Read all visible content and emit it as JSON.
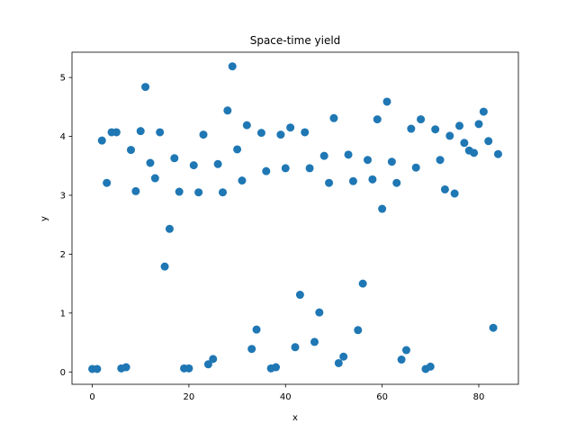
{
  "chart_data": {
    "type": "scatter",
    "title": "Space-time yield",
    "xlabel": "x",
    "ylabel": "y",
    "xlim": [
      -4.2,
      88.2
    ],
    "ylim": [
      -0.21,
      5.43
    ],
    "xticks": [
      0,
      20,
      40,
      60,
      80
    ],
    "yticks": [
      0,
      1,
      2,
      3,
      4,
      5
    ],
    "grid": false,
    "legend": "none",
    "marker_color": "#1f77b4",
    "x": [
      0,
      1,
      2,
      3,
      4,
      5,
      6,
      7,
      8,
      9,
      10,
      11,
      12,
      13,
      14,
      15,
      16,
      17,
      18,
      19,
      20,
      21,
      22,
      23,
      24,
      25,
      26,
      27,
      28,
      29,
      30,
      31,
      32,
      33,
      34,
      35,
      36,
      37,
      38,
      39,
      40,
      41,
      42,
      43,
      44,
      45,
      46,
      47,
      48,
      49,
      50,
      51,
      52,
      53,
      54,
      55,
      56,
      57,
      58,
      59,
      60,
      61,
      62,
      63,
      64,
      65,
      66,
      67,
      68,
      69,
      70,
      71,
      72,
      73,
      74,
      75,
      76,
      77,
      78,
      79,
      80,
      81,
      82,
      83,
      84
    ],
    "y": [
      0.05,
      0.05,
      3.93,
      3.21,
      4.07,
      4.07,
      0.06,
      0.08,
      3.77,
      3.07,
      4.09,
      4.84,
      3.55,
      3.29,
      4.07,
      1.79,
      2.43,
      3.63,
      3.06,
      0.06,
      0.06,
      3.51,
      3.05,
      4.03,
      0.13,
      0.22,
      3.53,
      3.05,
      4.44,
      5.19,
      3.78,
      3.25,
      4.19,
      0.39,
      0.72,
      4.06,
      3.41,
      0.06,
      0.08,
      4.03,
      3.46,
      4.15,
      0.42,
      1.31,
      4.07,
      3.46,
      0.51,
      1.01,
      3.67,
      3.21,
      4.31,
      0.15,
      0.26,
      3.69,
      3.24,
      0.71,
      1.5,
      3.6,
      3.27,
      4.29,
      2.77,
      4.59,
      3.57,
      3.21,
      0.21,
      0.37,
      4.13,
      3.47,
      4.29,
      0.05,
      0.09,
      4.12,
      3.6,
      3.1,
      4.01,
      3.03,
      4.18,
      3.89,
      3.76,
      3.72,
      4.21,
      4.42,
      3.92,
      0.75,
      3.7
    ]
  }
}
